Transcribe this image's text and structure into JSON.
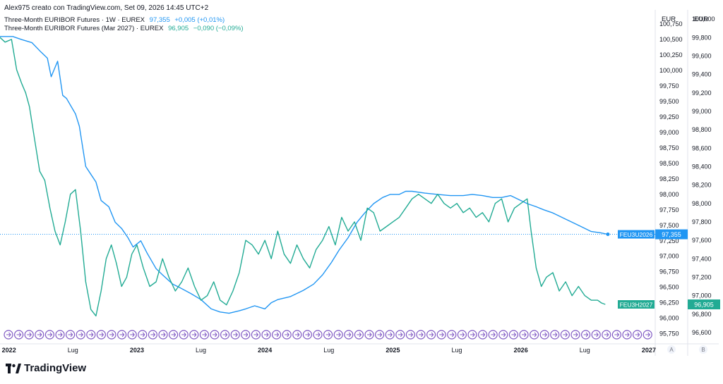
{
  "header": {
    "credit": "Alex975 creato con TradingView.com, Set 09, 2026 14:45 UTC+2"
  },
  "legend": [
    {
      "name": "Three-Month EURIBOR Futures · 1W · EUREX",
      "value": "97,355",
      "change": "+0,005 (+0,01%)",
      "color": "#2196f3"
    },
    {
      "name": "Three-Month EURIBOR Futures (Mar 2027) · EUREX",
      "value": "96,905",
      "change": "−0,090 (−0,09%)",
      "color": "#22ab94"
    }
  ],
  "logo": {
    "text": "TradingView"
  },
  "chart_data": {
    "type": "line",
    "x_ticks": [
      "2022",
      "Lug",
      "2023",
      "Lug",
      "2024",
      "Lug",
      "2025",
      "Lug",
      "2026",
      "Lug",
      "2027"
    ],
    "x_tick_bold": [
      true,
      false,
      true,
      false,
      true,
      false,
      true,
      false,
      true,
      false,
      true
    ],
    "axis_a": {
      "currency": "EUR",
      "ticks": [
        "100,750",
        "100,500",
        "100,250",
        "100,000",
        "99,750",
        "99,500",
        "99,250",
        "99,000",
        "98,750",
        "98,500",
        "98,250",
        "98,000",
        "97,750",
        "97,500",
        "97,250",
        "97,000",
        "96,750",
        "96,500",
        "96,250",
        "96,000",
        "95,750"
      ],
      "tick_values": [
        100.75,
        100.5,
        100.25,
        100.0,
        99.75,
        99.5,
        99.25,
        99.0,
        98.75,
        98.5,
        98.25,
        98.0,
        97.75,
        97.5,
        97.25,
        97.0,
        96.75,
        96.5,
        96.25,
        96.0,
        95.75
      ],
      "bottom_letter": "A"
    },
    "axis_b": {
      "currency": "EUR",
      "ticks": [
        "100,000",
        "99,800",
        "99,600",
        "99,400",
        "99,200",
        "99,000",
        "98,800",
        "98,600",
        "98,400",
        "98,200",
        "98,000",
        "97,800",
        "97,600",
        "97,400",
        "97,200",
        "97,000",
        "96,800",
        "96,600"
      ],
      "tick_values": [
        100.0,
        99.8,
        99.6,
        99.4,
        99.2,
        99.0,
        98.8,
        98.6,
        98.4,
        98.2,
        98.0,
        97.8,
        97.6,
        97.4,
        97.2,
        97.0,
        96.8,
        96.6
      ],
      "bottom_letter": "B"
    },
    "series": [
      {
        "name": "FEU3U2026",
        "axis": "A",
        "color": "#2196f3",
        "last_label": "97,355",
        "x": [
          2021.93,
          2022.03,
          2022.1,
          2022.18,
          2022.25,
          2022.3,
          2022.33,
          2022.38,
          2022.42,
          2022.45,
          2022.52,
          2022.55,
          2022.6,
          2022.68,
          2022.72,
          2022.78,
          2022.83,
          2022.88,
          2022.93,
          2022.97,
          2023.03,
          2023.08,
          2023.15,
          2023.2,
          2023.28,
          2023.33,
          2023.42,
          2023.5,
          2023.58,
          2023.65,
          2023.72,
          2023.8,
          2023.85,
          2023.92,
          2024.0,
          2024.05,
          2024.1,
          2024.2,
          2024.3,
          2024.38,
          2024.45,
          2024.52,
          2024.58,
          2024.65,
          2024.72,
          2024.78,
          2024.85,
          2024.92,
          2024.98,
          2025.05,
          2025.1,
          2025.15,
          2025.25,
          2025.35,
          2025.45,
          2025.55,
          2025.62,
          2025.7,
          2025.78,
          2025.85,
          2025.92,
          2025.98,
          2026.05,
          2026.12,
          2026.18,
          2026.25,
          2026.35,
          2026.45,
          2026.55,
          2026.62,
          2026.68
        ],
        "y": [
          100.55,
          100.55,
          100.5,
          100.45,
          100.3,
          100.2,
          99.9,
          100.15,
          99.6,
          99.55,
          99.3,
          99.1,
          98.45,
          98.2,
          97.9,
          97.8,
          97.55,
          97.45,
          97.3,
          97.15,
          97.25,
          97.05,
          96.8,
          96.7,
          96.55,
          96.5,
          96.4,
          96.3,
          96.15,
          96.1,
          96.08,
          96.12,
          96.15,
          96.2,
          96.15,
          96.25,
          96.3,
          96.35,
          96.45,
          96.55,
          96.7,
          96.9,
          97.1,
          97.3,
          97.55,
          97.7,
          97.85,
          97.95,
          98.0,
          98.0,
          98.05,
          98.05,
          98.02,
          98.0,
          97.98,
          97.98,
          98.0,
          97.98,
          97.95,
          97.95,
          97.98,
          97.92,
          97.85,
          97.8,
          97.75,
          97.7,
          97.6,
          97.5,
          97.4,
          97.38,
          97.355
        ]
      },
      {
        "name": "FEU3H2027",
        "axis": "B",
        "color": "#22ab94",
        "last_label": "96,905",
        "x": [
          2021.93,
          2021.97,
          2022.02,
          2022.06,
          2022.1,
          2022.13,
          2022.16,
          2022.2,
          2022.24,
          2022.28,
          2022.32,
          2022.36,
          2022.4,
          2022.44,
          2022.48,
          2022.52,
          2022.56,
          2022.6,
          2022.64,
          2022.68,
          2022.72,
          2022.76,
          2022.8,
          2022.84,
          2022.88,
          2022.92,
          2022.96,
          2023.0,
          2023.05,
          2023.1,
          2023.15,
          2023.2,
          2023.25,
          2023.3,
          2023.35,
          2023.4,
          2023.45,
          2023.5,
          2023.55,
          2023.6,
          2023.65,
          2023.7,
          2023.75,
          2023.8,
          2023.85,
          2023.9,
          2023.95,
          2024.0,
          2024.05,
          2024.1,
          2024.15,
          2024.2,
          2024.25,
          2024.3,
          2024.35,
          2024.4,
          2024.45,
          2024.5,
          2024.55,
          2024.6,
          2024.65,
          2024.7,
          2024.75,
          2024.8,
          2024.85,
          2024.9,
          2024.95,
          2025.0,
          2025.05,
          2025.1,
          2025.15,
          2025.2,
          2025.25,
          2025.3,
          2025.35,
          2025.4,
          2025.45,
          2025.5,
          2025.55,
          2025.6,
          2025.65,
          2025.7,
          2025.75,
          2025.8,
          2025.85,
          2025.9,
          2025.95,
          2026.0,
          2026.05,
          2026.08,
          2026.12,
          2026.16,
          2026.2,
          2026.25,
          2026.3,
          2026.35,
          2026.4,
          2026.45,
          2026.5,
          2026.55,
          2026.6,
          2026.63,
          2026.66
        ],
        "y": [
          99.8,
          99.75,
          99.78,
          99.45,
          99.3,
          99.2,
          99.05,
          98.7,
          98.35,
          98.25,
          97.95,
          97.7,
          97.55,
          97.8,
          98.1,
          98.15,
          97.7,
          97.15,
          96.85,
          96.78,
          97.05,
          97.4,
          97.55,
          97.35,
          97.1,
          97.2,
          97.45,
          97.55,
          97.3,
          97.1,
          97.15,
          97.4,
          97.2,
          97.05,
          97.15,
          97.3,
          97.1,
          96.95,
          97.0,
          97.15,
          96.95,
          96.9,
          97.05,
          97.25,
          97.6,
          97.55,
          97.45,
          97.6,
          97.4,
          97.7,
          97.45,
          97.35,
          97.55,
          97.4,
          97.3,
          97.5,
          97.6,
          97.75,
          97.55,
          97.85,
          97.7,
          97.8,
          97.6,
          97.95,
          97.9,
          97.7,
          97.75,
          97.8,
          97.85,
          97.95,
          98.05,
          98.1,
          98.05,
          98.0,
          98.1,
          98.0,
          97.95,
          98.0,
          97.9,
          97.95,
          97.85,
          97.9,
          97.8,
          98.0,
          98.05,
          97.8,
          97.95,
          98.0,
          98.05,
          97.7,
          97.3,
          97.1,
          97.2,
          97.25,
          97.05,
          97.15,
          97.0,
          97.1,
          97.0,
          96.95,
          96.95,
          96.92,
          96.905
        ]
      }
    ],
    "xlim": [
      2021.93,
      2027.05
    ],
    "ylim_a": [
      95.62,
      100.98
    ],
    "ylim_b": [
      96.5,
      100.1
    ],
    "grid": false
  }
}
